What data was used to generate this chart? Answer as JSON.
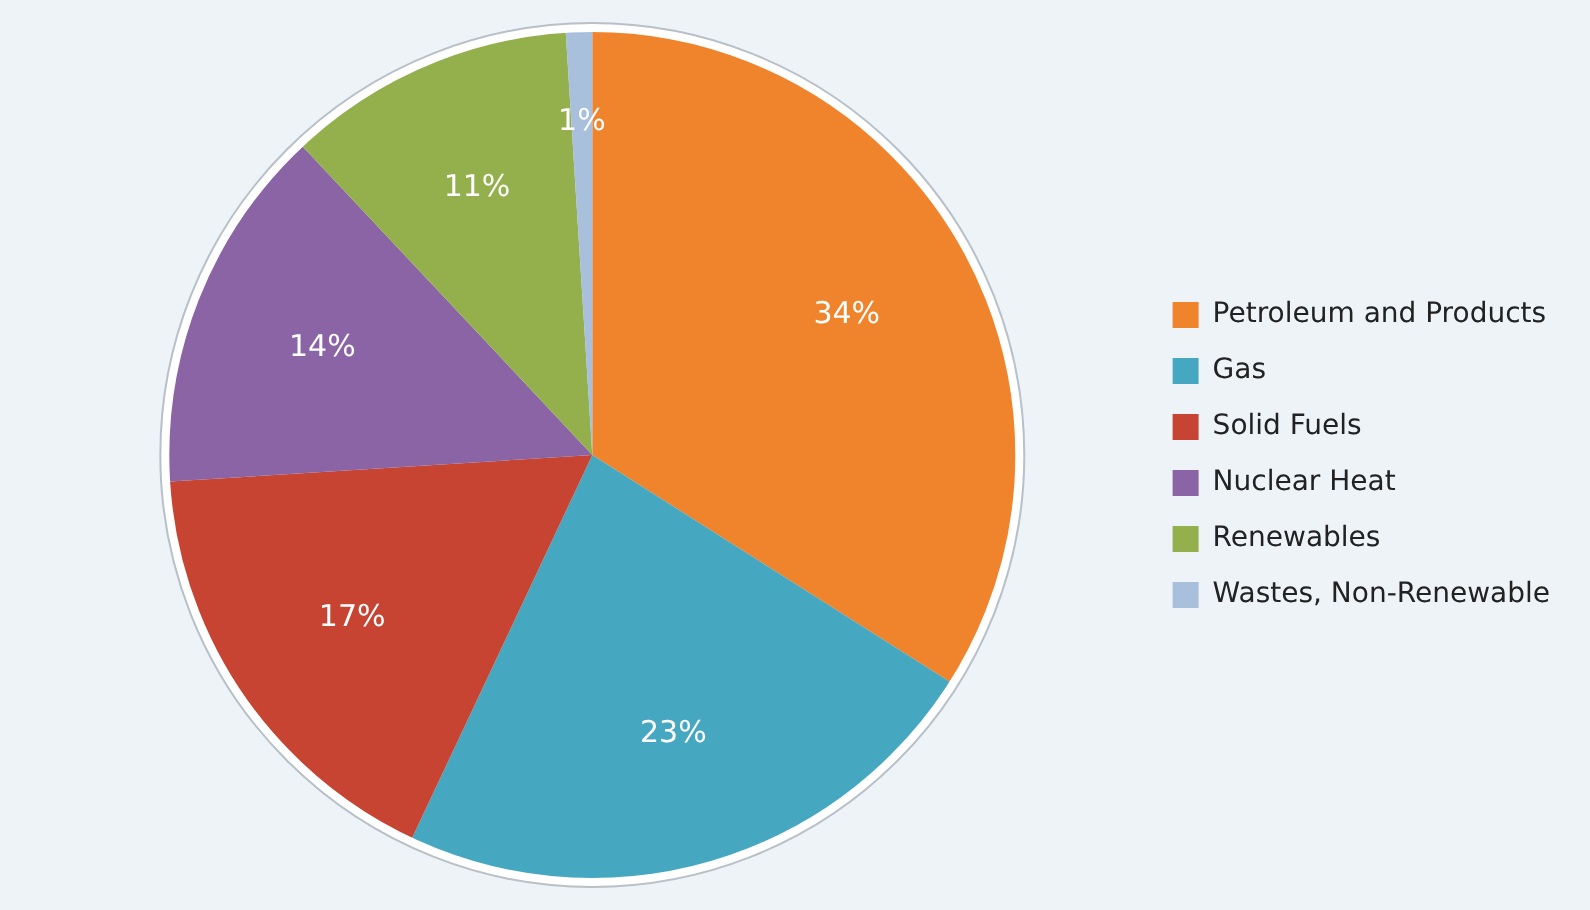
{
  "chart_data": {
    "type": "pie",
    "categories": [
      "Petroleum and Products",
      "Gas",
      "Solid Fuels",
      "Nuclear Heat",
      "Renewables",
      "Wastes, Non-Renewable"
    ],
    "values": [
      34,
      23,
      17,
      14,
      11,
      1
    ],
    "colors": [
      "#f0842c",
      "#46a8c0",
      "#c84432",
      "#8a64a4",
      "#94b04c",
      "#a8c0dc"
    ],
    "value_labels": [
      "34%",
      "23%",
      "17%",
      "14%",
      "11%",
      "1%"
    ],
    "legend": "right"
  }
}
